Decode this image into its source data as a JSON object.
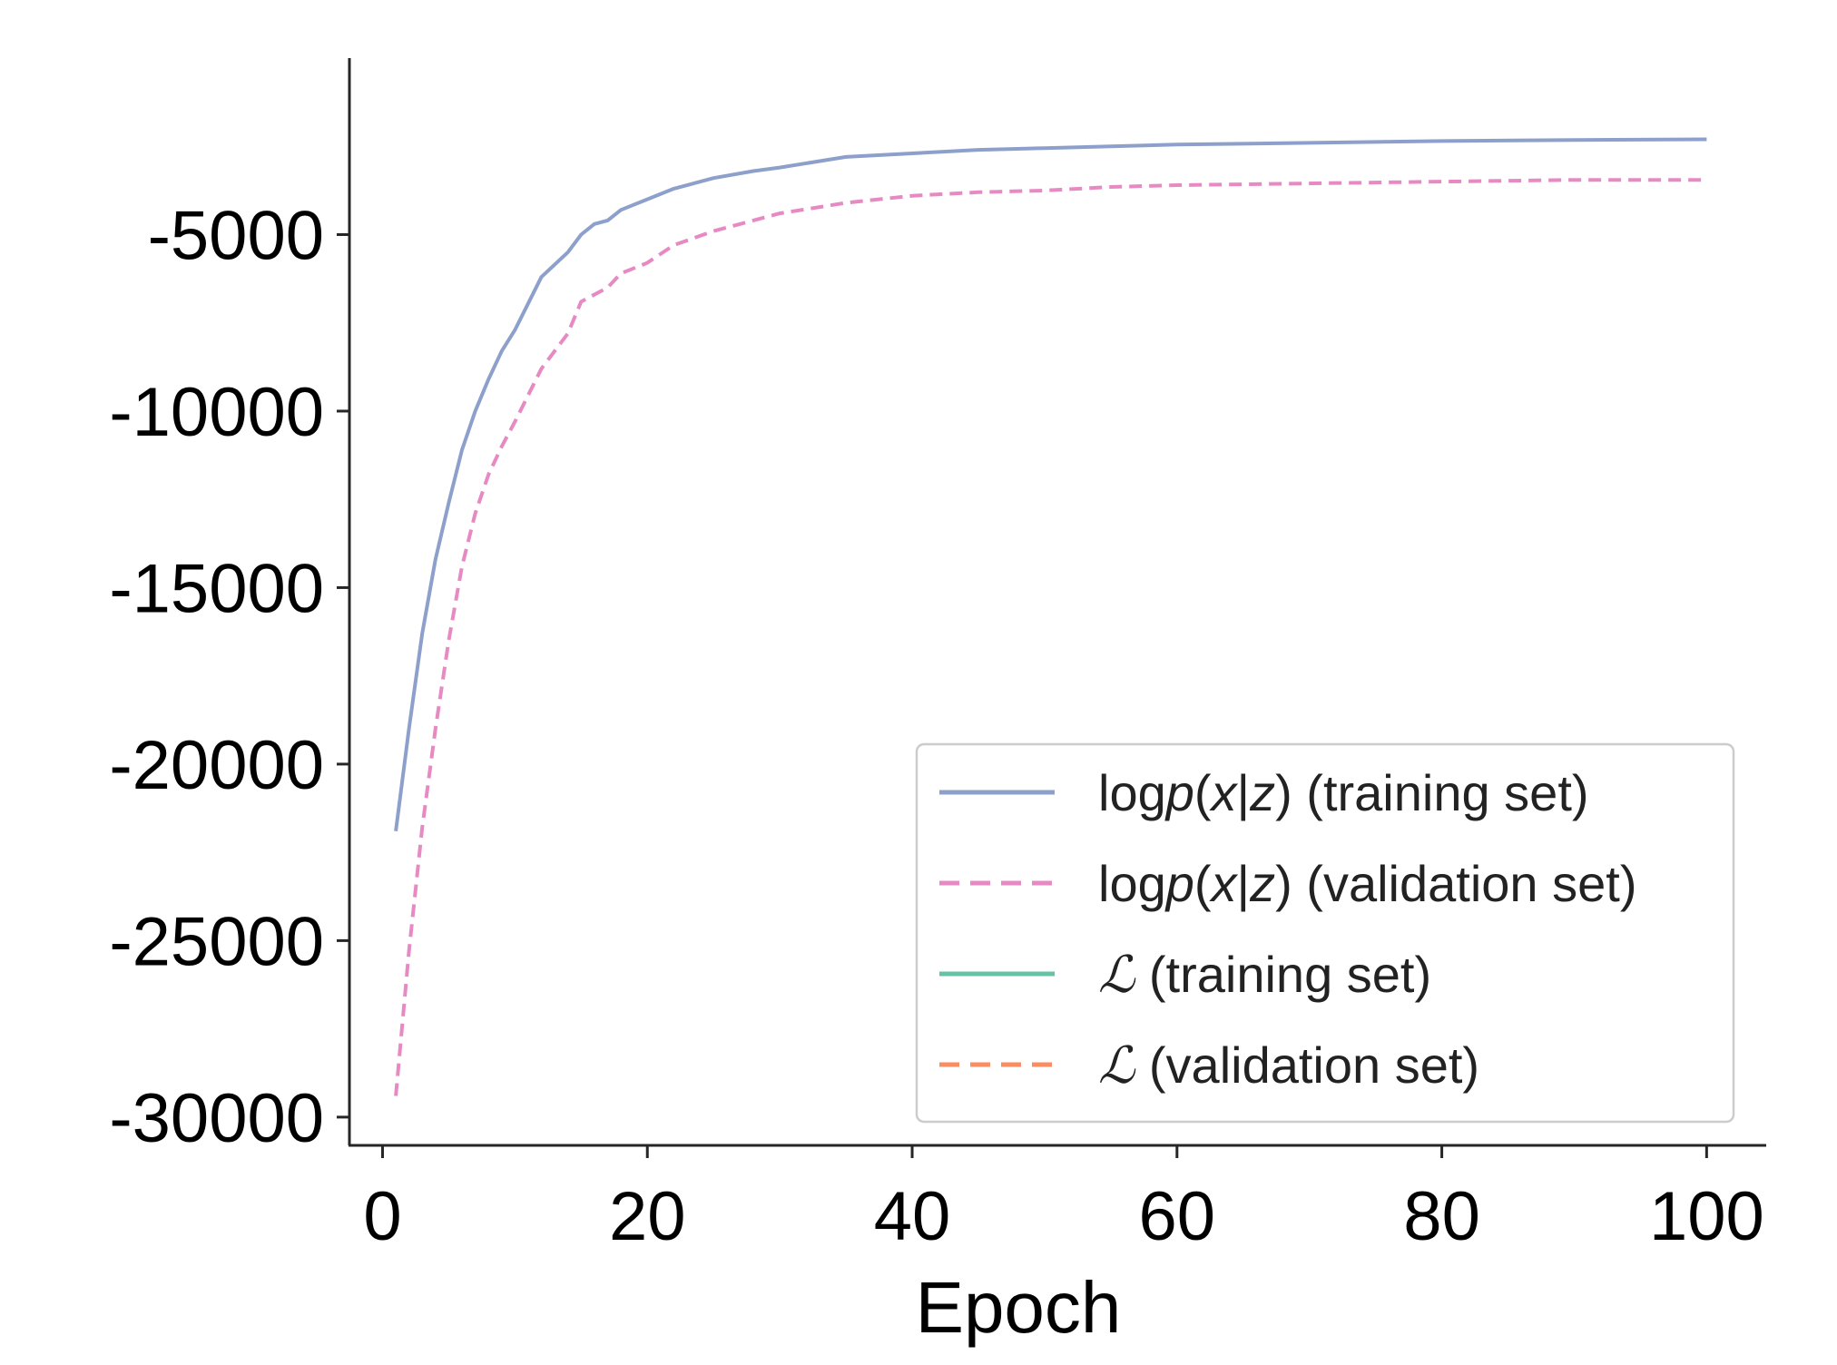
{
  "chart_data": {
    "type": "line",
    "xlabel": "Epoch",
    "ylabel": "",
    "xlim": [
      -2.5,
      104.5
    ],
    "ylim": [
      -30800,
      0
    ],
    "x_ticks": [
      0,
      20,
      40,
      60,
      80,
      100
    ],
    "x_tick_labels": [
      "0",
      "20",
      "40",
      "60",
      "80",
      "100"
    ],
    "y_ticks": [
      -5000,
      -10000,
      -15000,
      -20000,
      -25000,
      -30000
    ],
    "y_tick_labels": [
      "-5000",
      "-10000",
      "-15000",
      "-20000",
      "-25000",
      "-30000"
    ],
    "grid": false,
    "legend_position": "bottom-right",
    "legend": [
      {
        "prefix": "log",
        "p": "p",
        "open": "(",
        "x": "x",
        "bar": "|",
        "z": "z",
        "close": ")",
        "suffix": " (training set)",
        "color": "#8da0cb",
        "dashed": false
      },
      {
        "prefix": "log",
        "p": "p",
        "open": "(",
        "x": "x",
        "bar": "|",
        "z": "z",
        "close": ")",
        "suffix": " (validation set)",
        "color": "#e78ac3",
        "dashed": true
      },
      {
        "symbol": "ℒ",
        "suffix": " (training set)",
        "color": "#66c2a5",
        "dashed": false
      },
      {
        "symbol": "ℒ",
        "suffix": " (validation set)",
        "color": "#fc8d62",
        "dashed": true
      }
    ],
    "series": [
      {
        "color": "#8da0cb",
        "dashed": false,
        "x": [
          1,
          2,
          3,
          4,
          5,
          6,
          7,
          8,
          9,
          10,
          12,
          14,
          15,
          16,
          17,
          18,
          20,
          22,
          25,
          28,
          30,
          35,
          40,
          45,
          50,
          55,
          60,
          70,
          80,
          90,
          100
        ],
        "y": [
          -21900,
          -19000,
          -16300,
          -14200,
          -12600,
          -11100,
          -10000,
          -9100,
          -8300,
          -7700,
          -6200,
          -5500,
          -5000,
          -4700,
          -4600,
          -4300,
          -4000,
          -3700,
          -3400,
          -3200,
          -3100,
          -2800,
          -2700,
          -2600,
          -2550,
          -2500,
          -2450,
          -2400,
          -2350,
          -2320,
          -2300
        ]
      },
      {
        "color": "#e78ac3",
        "dashed": true,
        "x": [
          1,
          2,
          3,
          4,
          5,
          6,
          7,
          8,
          9,
          10,
          12,
          14,
          15,
          17,
          18,
          20,
          22,
          25,
          28,
          30,
          35,
          40,
          45,
          50,
          55,
          60,
          70,
          80,
          90,
          100
        ],
        "y": [
          -29400,
          -25300,
          -21800,
          -19000,
          -16500,
          -14400,
          -12900,
          -11800,
          -11000,
          -10300,
          -8800,
          -7800,
          -6900,
          -6500,
          -6100,
          -5800,
          -5300,
          -4900,
          -4600,
          -4400,
          -4100,
          -3900,
          -3800,
          -3750,
          -3650,
          -3600,
          -3550,
          -3500,
          -3450,
          -3450
        ]
      }
    ]
  }
}
